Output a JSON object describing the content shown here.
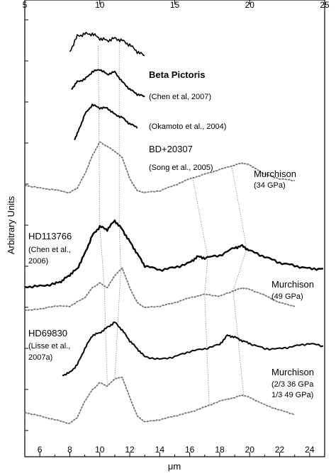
{
  "chart_data": {
    "type": "line",
    "xlabel": "μm",
    "ylabel": "Arbitrary Units",
    "xlim": [
      5,
      25
    ],
    "top_axis_ticks": [
      5,
      10,
      15,
      20,
      25
    ],
    "bottom_axis_ticks": [
      6,
      8,
      10,
      12,
      14,
      16,
      18,
      20,
      22,
      24
    ],
    "y_scale": "arbitrary, no printed values",
    "legend": "none",
    "grid": false,
    "annotations": [
      {
        "id": "beta-pictoris",
        "lines": [
          "Beta Pictoris"
        ],
        "style": "bold"
      },
      {
        "id": "chen-2007",
        "lines": [
          "(Chen et al, 2007)"
        ],
        "style": "small"
      },
      {
        "id": "okamoto-2004",
        "lines": [
          "(Okamoto et al., 2004)"
        ],
        "style": "small"
      },
      {
        "id": "bd20307",
        "lines": [
          "BD+20307"
        ],
        "style": "large"
      },
      {
        "id": "song-2005",
        "lines": [
          "(Song et al., 2005)"
        ],
        "style": "small"
      },
      {
        "id": "murchison-34",
        "lines": [
          "Murchison",
          "(34 GPa)"
        ],
        "style": "mixed"
      },
      {
        "id": "hd113766",
        "lines": [
          "HD113766",
          "(Chen et al.,",
          "2006)"
        ],
        "style": "mixed"
      },
      {
        "id": "murchison-49",
        "lines": [
          "Murchison",
          "(49 GPa)"
        ],
        "style": "mixed"
      },
      {
        "id": "hd69830",
        "lines": [
          "HD69830",
          "(Lisse et al.,",
          "2007a)"
        ],
        "style": "mixed"
      },
      {
        "id": "murchison-mix",
        "lines": [
          "Murchison",
          "(2/3 36 GPa",
          "1/3 49 GPa)"
        ],
        "style": "mixed"
      }
    ],
    "series": [
      {
        "id": "beta-pic-chen",
        "style": "noisy",
        "x": [
          8.0,
          8.5,
          9.0,
          9.5,
          10.0,
          10.5,
          11.0,
          11.5,
          12.0,
          12.5,
          13.0
        ],
        "y": [
          0.6,
          0.95,
          1.0,
          1.0,
          0.9,
          0.85,
          0.9,
          0.85,
          0.75,
          0.6,
          0.5
        ]
      },
      {
        "id": "beta-pic-okamoto",
        "style": "thick",
        "x": [
          8.1,
          8.5,
          9.0,
          9.5,
          10.0,
          10.5,
          11.0,
          11.5,
          12.0,
          12.5,
          13.0
        ],
        "y": [
          0.6,
          0.75,
          0.8,
          0.95,
          1.0,
          0.9,
          0.95,
          0.75,
          0.6,
          0.5,
          0.45
        ]
      },
      {
        "id": "bd20307",
        "style": "thick",
        "x": [
          8.3,
          8.6,
          9.0,
          9.5,
          10.0,
          10.5,
          11.0,
          11.5,
          12.0,
          12.5
        ],
        "y": [
          0.45,
          0.6,
          0.85,
          1.0,
          0.95,
          0.95,
          0.85,
          0.8,
          0.7,
          0.65
        ]
      },
      {
        "id": "murchison-34",
        "style": "dotted-grey",
        "x": [
          5.0,
          6.0,
          7.0,
          8.0,
          8.5,
          9.0,
          9.5,
          10.0,
          10.5,
          11.0,
          11.5,
          12.0,
          12.5,
          13.0,
          14.0,
          15.0,
          16.0,
          17.0,
          18.0,
          19.0,
          19.5,
          20.0,
          20.5,
          21.0,
          22.0,
          23.0
        ],
        "y": [
          0.08,
          0.05,
          0.03,
          0.0,
          0.05,
          0.2,
          0.4,
          0.55,
          0.5,
          0.45,
          0.38,
          0.15,
          0.02,
          0.0,
          0.02,
          0.08,
          0.15,
          0.2,
          0.25,
          0.3,
          0.32,
          0.3,
          0.25,
          0.2,
          0.15,
          0.13
        ]
      },
      {
        "id": "hd113766",
        "style": "thick-noisy",
        "x": [
          5.0,
          6.0,
          7.0,
          7.5,
          8.0,
          8.5,
          9.0,
          9.5,
          10.0,
          10.5,
          11.0,
          11.5,
          12.0,
          12.5,
          13.0,
          14.0,
          15.0,
          16.0,
          16.5,
          17.0,
          18.0,
          19.0,
          19.5,
          20.0,
          21.0,
          22.0,
          23.0,
          24.0,
          24.9
        ],
        "y": [
          0.0,
          0.01,
          0.05,
          0.1,
          0.2,
          0.3,
          0.55,
          0.85,
          1.0,
          0.95,
          1.1,
          0.95,
          0.75,
          0.55,
          0.35,
          0.28,
          0.32,
          0.4,
          0.5,
          0.48,
          0.52,
          0.65,
          0.68,
          0.6,
          0.5,
          0.4,
          0.35,
          0.3,
          0.3
        ]
      },
      {
        "id": "murchison-49",
        "style": "dotted-grey",
        "x": [
          5.0,
          6.0,
          6.5,
          7.0,
          8.0,
          9.0,
          9.5,
          10.0,
          10.5,
          11.0,
          11.5,
          12.0,
          12.5,
          13.0,
          14.0,
          15.0,
          16.0,
          17.0,
          18.0,
          19.0,
          19.5,
          20.0,
          21.0,
          22.0,
          23.0
        ],
        "y": [
          0.0,
          0.02,
          0.05,
          0.08,
          0.08,
          0.25,
          0.45,
          0.55,
          0.45,
          0.7,
          0.85,
          0.45,
          0.15,
          0.05,
          0.08,
          0.15,
          0.25,
          0.32,
          0.28,
          0.4,
          0.45,
          0.42,
          0.3,
          0.15,
          0.08
        ]
      },
      {
        "id": "hd69830",
        "style": "thick",
        "x": [
          7.5,
          8.0,
          8.5,
          9.0,
          9.5,
          10.0,
          10.5,
          11.0,
          11.5,
          12.0,
          12.5,
          13.0,
          14.0,
          15.0,
          16.0,
          17.0,
          18.0,
          18.5,
          19.0,
          19.5,
          20.0,
          21.0,
          22.0,
          23.0,
          24.0,
          24.9
        ],
        "y": [
          0.0,
          0.05,
          0.2,
          0.5,
          0.75,
          0.8,
          0.9,
          1.0,
          0.85,
          0.65,
          0.5,
          0.35,
          0.3,
          0.35,
          0.45,
          0.5,
          0.58,
          0.75,
          0.72,
          0.65,
          0.6,
          0.5,
          0.5,
          0.55,
          0.6,
          0.55
        ]
      },
      {
        "id": "murchison-mix",
        "style": "dotted-grey",
        "x": [
          5.0,
          6.0,
          7.0,
          8.0,
          8.5,
          9.0,
          9.5,
          10.0,
          10.5,
          11.0,
          11.5,
          12.0,
          12.5,
          13.0,
          14.0,
          15.0,
          16.0,
          17.0,
          18.0,
          19.0,
          19.5,
          20.0,
          21.0,
          22.0,
          23.0
        ],
        "y": [
          0.15,
          0.1,
          0.05,
          0.0,
          0.08,
          0.3,
          0.45,
          0.55,
          0.5,
          0.6,
          0.62,
          0.35,
          0.1,
          0.02,
          0.05,
          0.1,
          0.15,
          0.22,
          0.3,
          0.35,
          0.38,
          0.35,
          0.25,
          0.18,
          0.12
        ]
      }
    ],
    "feature_lines": [
      {
        "id": "10um-band",
        "x": [
          9.9,
          10.0,
          10.3,
          10.5
        ]
      },
      {
        "id": "11um-band",
        "x": [
          11.3,
          11.3,
          11.4,
          11.0
        ]
      },
      {
        "id": "17um-band",
        "x": [
          16.2,
          17.2,
          17.0,
          17.3
        ]
      },
      {
        "id": "19um-band",
        "x": [
          18.8,
          19.8,
          18.9,
          19.6
        ]
      }
    ]
  }
}
